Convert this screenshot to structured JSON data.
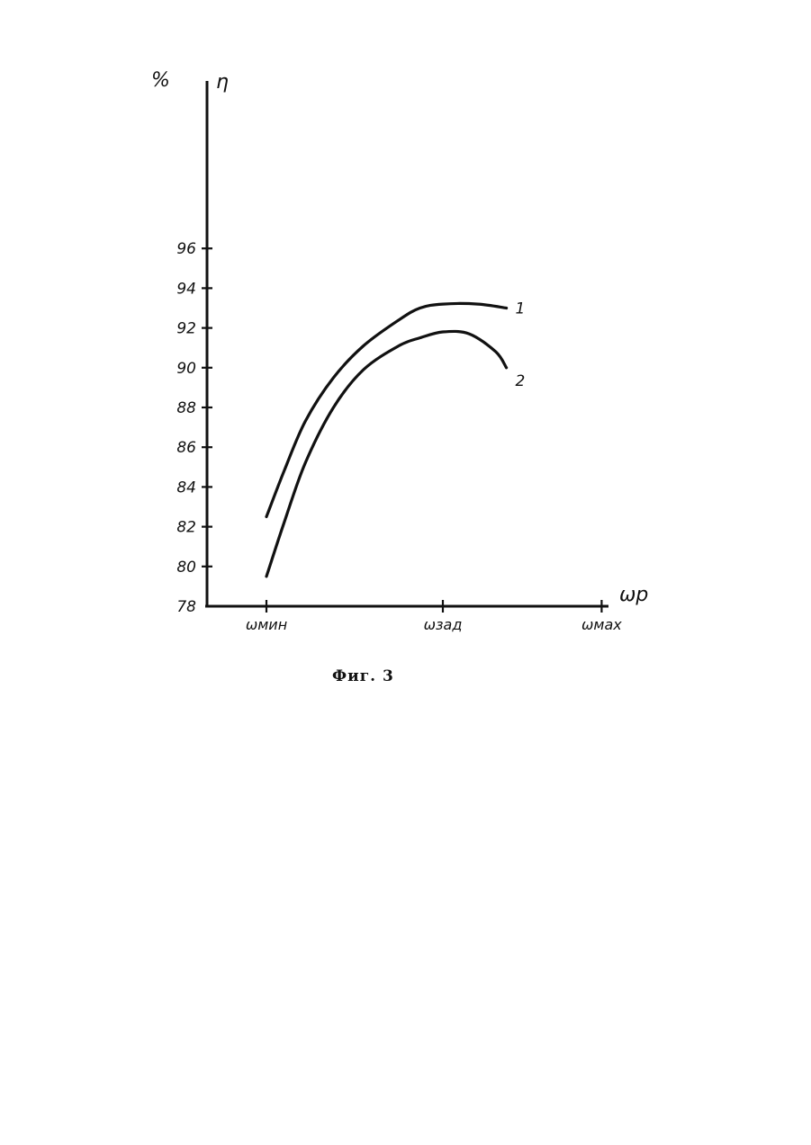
{
  "chart_data": {
    "type": "line",
    "y_unit_label": "%",
    "ylabel": "η",
    "xlabel": "ωp",
    "ylim": [
      78,
      100
    ],
    "yticks": [
      78,
      80,
      82,
      84,
      86,
      88,
      90,
      92,
      94,
      96
    ],
    "y_tick_labels": [
      "78",
      "80",
      "82",
      "84",
      "86",
      "88",
      "90",
      "92",
      "94",
      "96"
    ],
    "categories": [
      "ωмин",
      "ωзад",
      "ωмах"
    ],
    "grid": false,
    "legend": "inline-end-of-lines",
    "series": [
      {
        "name": "1",
        "x": [
          0,
          0.1,
          0.22,
          0.38,
          0.55,
          0.75,
          0.87,
          1.0,
          1.2,
          1.36
        ],
        "y": [
          82.5,
          84.8,
          87.3,
          89.5,
          91.1,
          92.4,
          93.0,
          93.2,
          93.2,
          93.0
        ]
      },
      {
        "name": "2",
        "x": [
          0,
          0.1,
          0.22,
          0.38,
          0.55,
          0.75,
          0.87,
          1.0,
          1.15,
          1.3,
          1.36
        ],
        "y": [
          79.5,
          82.2,
          85.2,
          88.0,
          89.9,
          91.1,
          91.5,
          91.8,
          91.7,
          90.8,
          90.0
        ]
      }
    ],
    "x_category_positions": [
      0,
      1,
      1.9
    ]
  },
  "figure_caption": "Фиг. 3",
  "colors": {
    "ink": "#111111",
    "background": "#ffffff"
  }
}
